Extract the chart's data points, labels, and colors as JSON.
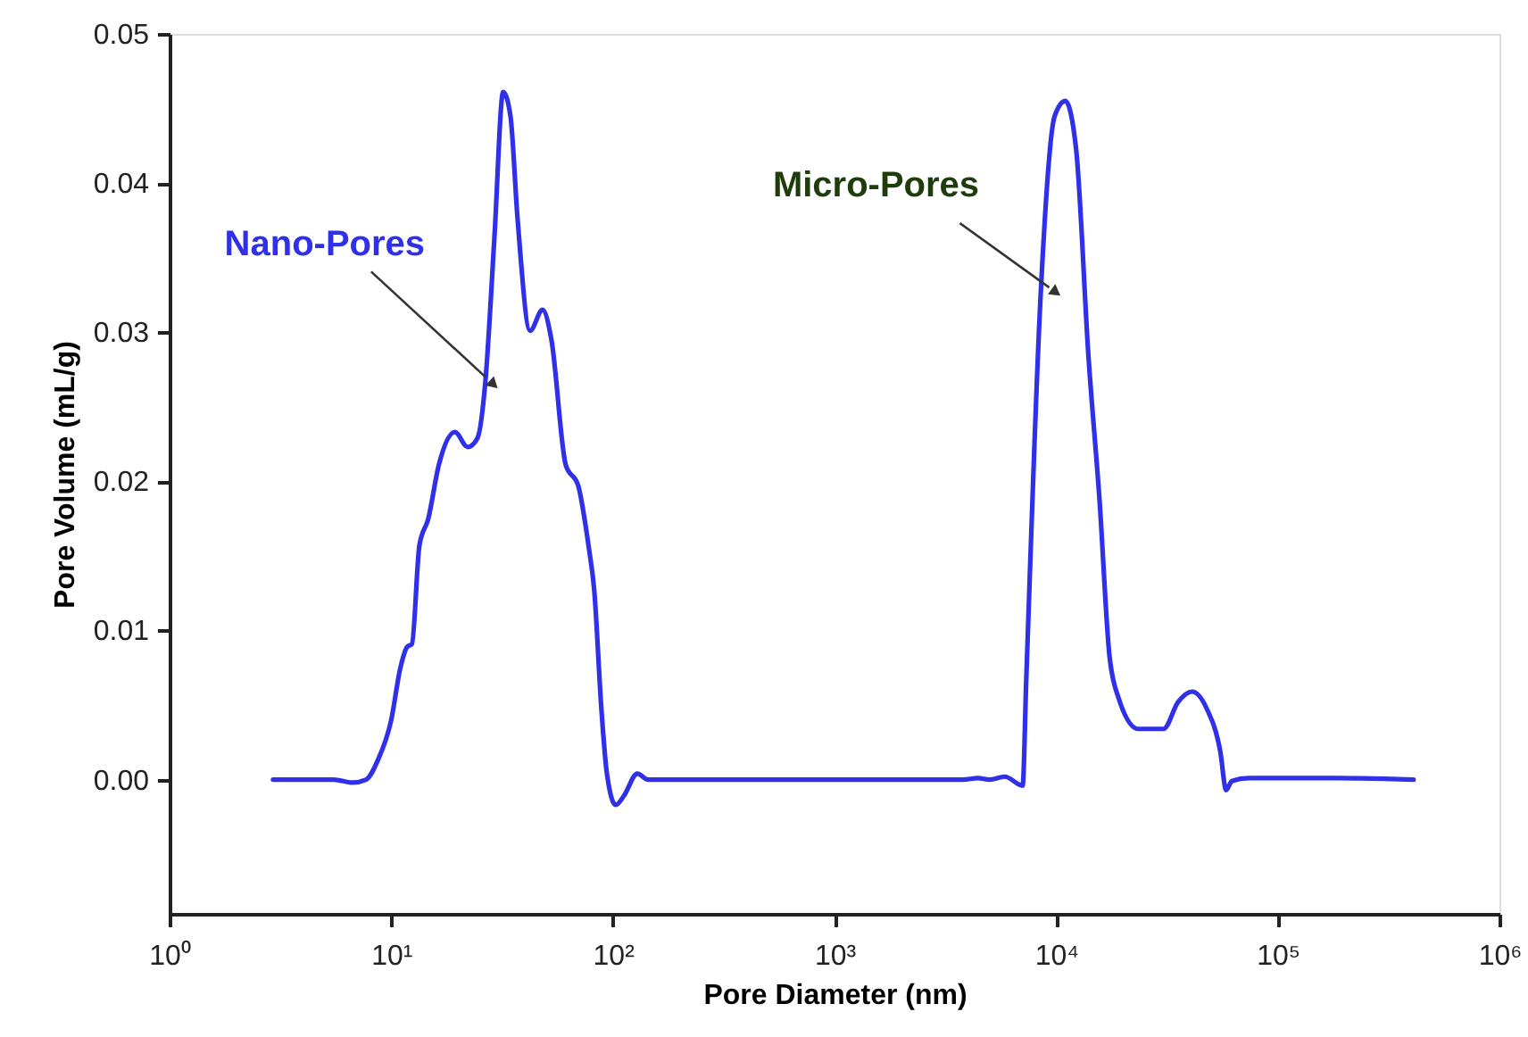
{
  "chart_data": {
    "type": "line",
    "xlabel": "Pore Diameter (nm)",
    "ylabel": "Pore Volume (mL/g)",
    "log": "x",
    "xlim": [
      1,
      1000000
    ],
    "ylim": [
      -0.009,
      0.05
    ],
    "xticks": [
      {
        "value": 1,
        "label": "10⁰"
      },
      {
        "value": 10,
        "label": "10¹"
      },
      {
        "value": 100,
        "label": "10²"
      },
      {
        "value": 1000,
        "label": "10³"
      },
      {
        "value": 10000,
        "label": "10⁴"
      },
      {
        "value": 100000,
        "label": "10⁵"
      },
      {
        "value": 1000000,
        "label": "10⁶"
      }
    ],
    "yticks": [
      {
        "value": 0,
        "label": "0.00"
      },
      0.01,
      0.02,
      0.03,
      0.04,
      0.05
    ],
    "grid": false,
    "marker": "none",
    "line_style": "solid",
    "annotations": [
      {
        "text": "Nano-Pores",
        "x": 26.6,
        "y": 0.027
      },
      {
        "text": "Micro-Pores",
        "x": 9300,
        "y": 0.033
      }
    ],
    "series": [
      {
        "color": "#3030e8",
        "x": [
          2.93,
          5.5,
          6.7,
          7.7,
          8.7,
          10,
          11,
          11.8,
          12.4,
          13.4,
          14.7,
          16.4,
          19.4,
          22.1,
          24.5,
          26.6,
          29.2,
          32,
          34.5,
          37.2,
          42.3,
          48.2,
          52.8,
          61.3,
          69.8,
          75.2,
          78,
          82.4,
          88.8,
          94,
          103,
          112,
          129,
          144,
          3800,
          4440,
          5000,
          5860,
          7060,
          7330,
          8500,
          9850,
          11000,
          12300,
          14000,
          15700,
          17400,
          19100,
          23500,
          30500,
          35500,
          41000,
          48000,
          55000,
          58500,
          62000,
          74000,
          187000,
          410000
        ],
        "values": [
          0,
          0,
          -0.0002,
          0,
          0.0013,
          0.004,
          0.0075,
          0.0089,
          0.0091,
          0.0157,
          0.0175,
          0.0211,
          0.0233,
          0.0223,
          0.0229,
          0.0267,
          0.0363,
          0.0461,
          0.0445,
          0.0375,
          0.0301,
          0.0315,
          0.0295,
          0.0211,
          0.0197,
          0.0171,
          0.0155,
          0.0127,
          0.0047,
          0.0004,
          -0.0017,
          -0.0011,
          0.0004,
          0,
          0,
          0.0001,
          0,
          0.0002,
          -0.0004,
          0.0067,
          0.0323,
          0.0445,
          0.0455,
          0.0423,
          0.0283,
          0.0187,
          0.0083,
          0.0055,
          0.0034,
          0.0034,
          0.0052,
          0.0059,
          0.0047,
          0.0019,
          -0.0007,
          -0.0001,
          0.0001,
          0.0001,
          0
        ]
      }
    ]
  }
}
